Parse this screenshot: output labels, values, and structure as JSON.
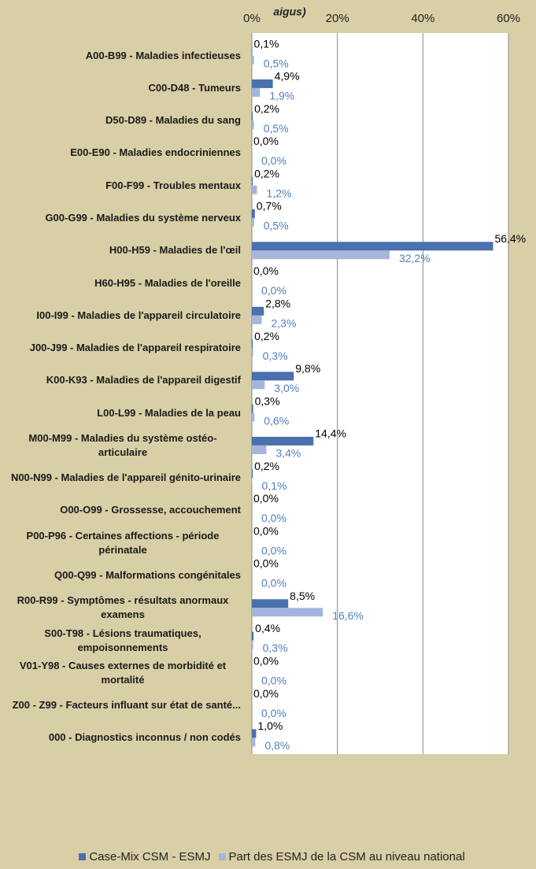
{
  "chart_data": {
    "type": "bar",
    "orientation": "horizontal",
    "title": "aigus)",
    "categories": [
      "A00-B99 - Maladies infectieuses",
      "C00-D48 - Tumeurs",
      "D50-D89 - Maladies du sang",
      "E00-E90 - Maladies endocriniennes",
      "F00-F99 - Troubles mentaux",
      "G00-G99 - Maladies du système nerveux",
      "H00-H59 - Maladies de l'œil",
      "H60-H95 - Maladies de l'oreille",
      "I00-I99 - Maladies de l'appareil circulatoire",
      "J00-J99 - Maladies de l'appareil respiratoire",
      "K00-K93 - Maladies de l'appareil digestif",
      "L00-L99 - Maladies de la peau",
      "M00-M99 - Maladies du système ostéo-articulaire",
      "N00-N99 - Maladies de l'appareil génito-urinaire",
      "O00-O99 - Grossesse, accouchement",
      "P00-P96 - Certaines affections - période périnatale",
      "Q00-Q99 - Malformations congénitales",
      "R00-R99 - Symptômes - résultats anormaux examens",
      "S00-T98 - Lésions traumatiques, empoisonnements",
      "V01-Y98 - Causes externes de morbidité et mortalité",
      "Z00 - Z99 - Facteurs influant sur état de santé...",
      "000 - Diagnostics inconnus / non codés"
    ],
    "series": [
      {
        "name": "Case-Mix CSM - ESMJ",
        "color": "#4a70ad",
        "label_color": "#000000",
        "values": [
          0.1,
          4.9,
          0.2,
          0.0,
          0.2,
          0.7,
          56.4,
          0.0,
          2.8,
          0.2,
          9.8,
          0.3,
          14.4,
          0.2,
          0.0,
          0.0,
          0.0,
          8.5,
          0.4,
          0.0,
          0.0,
          1.0
        ],
        "value_labels": [
          "0,1%",
          "4,9%",
          "0,2%",
          "0,0%",
          "0,2%",
          "0,7%",
          "56,4%",
          "0,0%",
          "2,8%",
          "0,2%",
          "9,8%",
          "0,3%",
          "14,4%",
          "0,2%",
          "0,0%",
          "0,0%",
          "0,0%",
          "8,5%",
          "0,4%",
          "0,0%",
          "0,0%",
          "1,0%"
        ]
      },
      {
        "name": "Part des ESMJ de la CSM au niveau national",
        "color": "#a5b6dc",
        "label_color": "#4f7fbf",
        "values": [
          0.5,
          1.9,
          0.5,
          0.0,
          1.2,
          0.5,
          32.2,
          0.0,
          2.3,
          0.3,
          3.0,
          0.6,
          3.4,
          0.1,
          0.0,
          0.0,
          0.0,
          16.6,
          0.3,
          0.0,
          0.0,
          0.8
        ],
        "value_labels": [
          "0,5%",
          "1,9%",
          "0,5%",
          "0,0%",
          "1,2%",
          "0,5%",
          "32,2%",
          "0,0%",
          "2,3%",
          "0,3%",
          "3,0%",
          "0,6%",
          "3,4%",
          "0,1%",
          "0,0%",
          "0,0%",
          "0,0%",
          "16,6%",
          "0,3%",
          "0,0%",
          "0,0%",
          "0,8%"
        ]
      }
    ],
    "xlim": [
      0,
      60
    ],
    "xticks": [
      {
        "value": 0,
        "label": "0%"
      },
      {
        "value": 20,
        "label": "20%"
      },
      {
        "value": 40,
        "label": "40%"
      },
      {
        "value": 60,
        "label": "60%"
      }
    ],
    "grid": true,
    "legend": "bottom"
  }
}
